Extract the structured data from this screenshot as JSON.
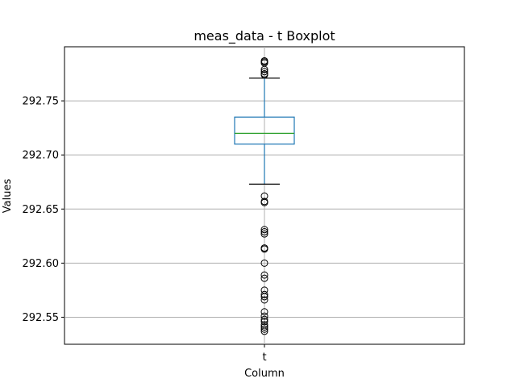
{
  "chart_data": {
    "type": "box",
    "title": "meas_data - t Boxplot",
    "xlabel": "Column",
    "ylabel": "Values",
    "categories": [
      "t"
    ],
    "ylim": [
      292.525,
      292.8
    ],
    "yticks": [
      292.55,
      292.6,
      292.65,
      292.7,
      292.75
    ],
    "ytick_labels": [
      "292.55",
      "292.60",
      "292.65",
      "292.70",
      "292.75"
    ],
    "grid": true,
    "box": {
      "q1": 292.71,
      "median": 292.72,
      "q3": 292.735,
      "whisker_low": 292.673,
      "whisker_high": 292.771
    },
    "outliers": [
      292.787,
      292.786,
      292.785,
      292.779,
      292.777,
      292.775,
      292.774,
      292.662,
      292.657,
      292.656,
      292.631,
      292.629,
      292.627,
      292.614,
      292.613,
      292.6,
      292.589,
      292.586,
      292.575,
      292.571,
      292.569,
      292.566,
      292.555,
      292.551,
      292.548,
      292.546,
      292.543,
      292.541,
      292.539,
      292.537
    ],
    "colors": {
      "box": "#1f77b4",
      "median": "#2ca02c",
      "whisker": "#1f77b4",
      "cap": "#000000",
      "flier": "#000000",
      "grid": "#b0b0b0"
    }
  }
}
